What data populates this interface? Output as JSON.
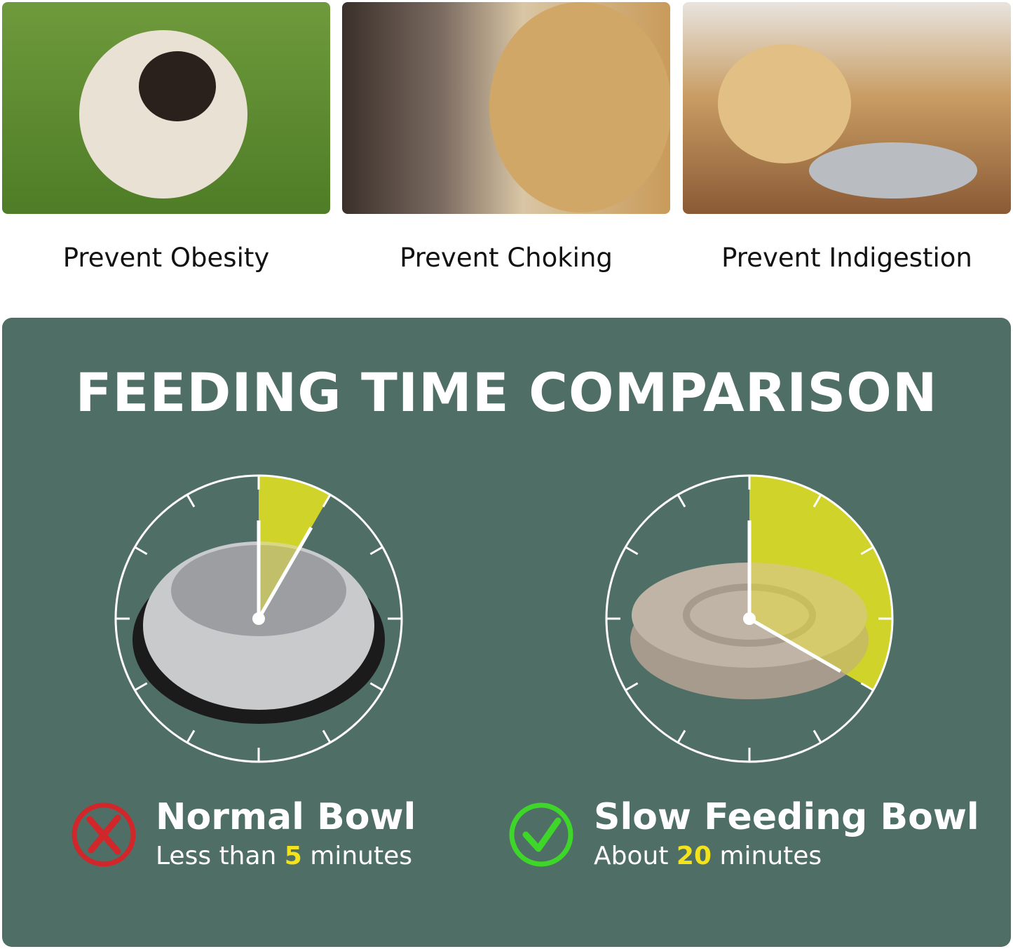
{
  "benefits": [
    {
      "caption": "Prevent Obesity"
    },
    {
      "caption": "Prevent Choking"
    },
    {
      "caption": "Prevent Indigestion"
    }
  ],
  "comparison": {
    "title": "FEEDING TIME COMPARISON",
    "normal": {
      "name": "Normal Bowl",
      "prefix": "Less than ",
      "value": "5",
      "suffix": " minutes",
      "minutes": 5,
      "icon": "x-circle-icon",
      "icon_color": "#d1262a"
    },
    "slow": {
      "name": "Slow Feeding Bowl",
      "prefix": "About ",
      "value": "20",
      "suffix": " minutes",
      "minutes": 20,
      "icon": "check-circle-icon",
      "icon_color": "#3fd62a"
    },
    "colors": {
      "panel": "#4f6f66",
      "highlight": "#f4e21c",
      "wedge": "#b5c42c"
    }
  }
}
